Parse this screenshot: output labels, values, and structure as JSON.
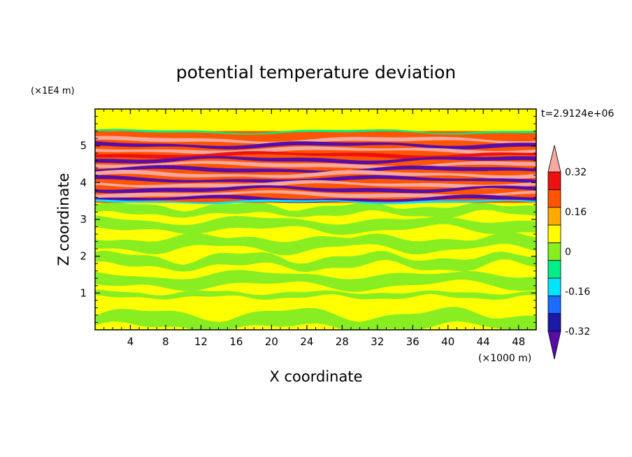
{
  "chart_data": {
    "type": "heatmap",
    "title": "potential temperature deviation",
    "xlabel": "X coordinate",
    "ylabel": "Z coordinate",
    "x_unit": "(×1000 m)",
    "y_unit": "(×1E4 m)",
    "time_label": "t=2.9124e+06",
    "xlim": [
      0,
      50
    ],
    "ylim": [
      0,
      6
    ],
    "x_ticks": [
      4,
      8,
      12,
      16,
      20,
      24,
      28,
      32,
      36,
      40,
      44,
      48
    ],
    "y_ticks": [
      1,
      2,
      3,
      4,
      5
    ],
    "colorbar": {
      "levels": [
        -0.4,
        -0.32,
        -0.24,
        -0.16,
        -0.08,
        0,
        0.08,
        0.16,
        0.24,
        0.32,
        0.4
      ],
      "labels": [
        "0.32",
        "0.16",
        "0",
        "-0.16",
        "-0.32"
      ],
      "label_values": [
        0.32,
        0.16,
        0,
        -0.16,
        -0.32
      ],
      "colors": [
        "#5a0ca8",
        "#1a1aa6",
        "#1a6bff",
        "#00e5ff",
        "#00ee88",
        "#88ee22",
        "#ffff00",
        "#ffaa00",
        "#ff5500",
        "#ee1111",
        "#f4a8a0"
      ],
      "extend": "both"
    },
    "bands": [
      {
        "z": 5.28,
        "value": 0.24
      },
      {
        "z": 5.15,
        "value": 0.4
      },
      {
        "z": 5.02,
        "value": -0.4
      },
      {
        "z": 4.88,
        "value": 0.4
      },
      {
        "z": 4.75,
        "value": 0.32
      },
      {
        "z": 4.62,
        "value": -0.4
      },
      {
        "z": 4.48,
        "value": 0.4
      },
      {
        "z": 4.35,
        "value": -0.4
      },
      {
        "z": 4.22,
        "value": 0.4
      },
      {
        "z": 4.08,
        "value": -0.4
      },
      {
        "z": 3.95,
        "value": 0.4
      },
      {
        "z": 3.82,
        "value": -0.4
      },
      {
        "z": 3.68,
        "value": 0.4
      },
      {
        "z": 3.55,
        "value": -0.4
      }
    ]
  }
}
